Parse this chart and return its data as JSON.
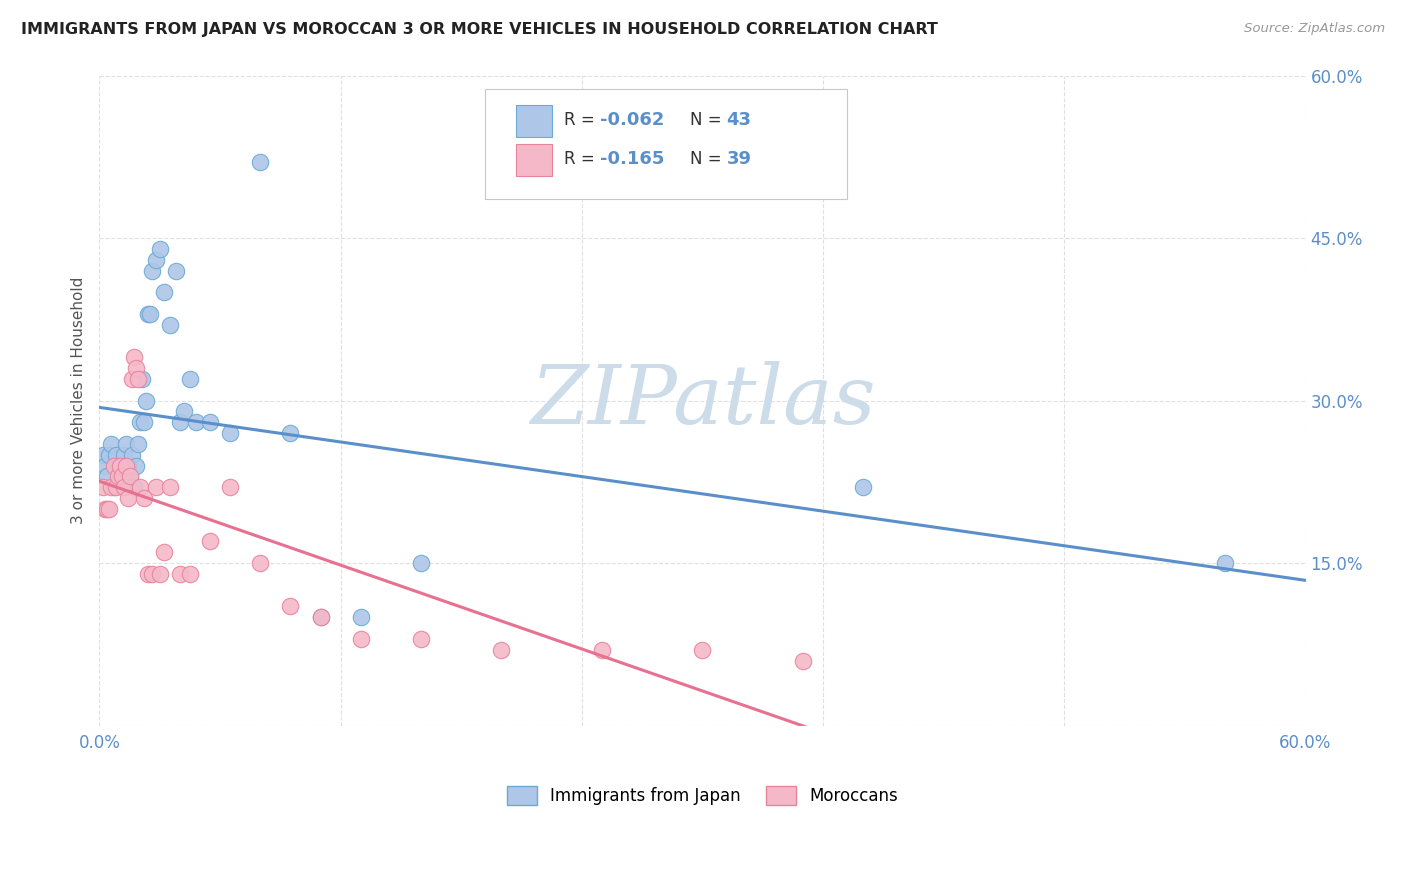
{
  "title": "IMMIGRANTS FROM JAPAN VS MOROCCAN 3 OR MORE VEHICLES IN HOUSEHOLD CORRELATION CHART",
  "source": "Source: ZipAtlas.com",
  "ylabel": "3 or more Vehicles in Household",
  "xlim": [
    0.0,
    0.6
  ],
  "ylim": [
    0.0,
    0.6
  ],
  "xticks": [
    0.0,
    0.12,
    0.24,
    0.36,
    0.48,
    0.6
  ],
  "yticks": [
    0.0,
    0.15,
    0.3,
    0.45,
    0.6
  ],
  "xticklabels": [
    "0.0%",
    "",
    "",
    "",
    "",
    "60.0%"
  ],
  "yticklabels_right": [
    "",
    "15.0%",
    "30.0%",
    "45.0%",
    "60.0%"
  ],
  "legend_label1": "Immigrants from Japan",
  "legend_label2": "Moroccans",
  "r1": -0.062,
  "n1": 43,
  "r2": -0.165,
  "n2": 39,
  "color_japan_fill": "#aec6e8",
  "color_morocco_fill": "#f5b8c8",
  "color_japan_edge": "#6aaad4",
  "color_morocco_edge": "#e8849a",
  "color_japan_line": "#5b8fc9",
  "color_morocco_line": "#e87090",
  "color_tick_blue": "#5b8fc9",
  "color_watermark": "#ccdce8",
  "color_grid": "#cccccc",
  "japan_x": [
    0.002,
    0.003,
    0.004,
    0.005,
    0.006,
    0.007,
    0.008,
    0.009,
    0.01,
    0.011,
    0.012,
    0.013,
    0.014,
    0.015,
    0.016,
    0.017,
    0.018,
    0.019,
    0.02,
    0.021,
    0.022,
    0.023,
    0.024,
    0.025,
    0.026,
    0.028,
    0.03,
    0.032,
    0.035,
    0.038,
    0.04,
    0.042,
    0.045,
    0.048,
    0.055,
    0.065,
    0.08,
    0.095,
    0.11,
    0.13,
    0.16,
    0.38,
    0.56
  ],
  "japan_y": [
    0.25,
    0.24,
    0.23,
    0.25,
    0.26,
    0.22,
    0.25,
    0.24,
    0.23,
    0.24,
    0.25,
    0.26,
    0.24,
    0.23,
    0.25,
    0.22,
    0.24,
    0.26,
    0.28,
    0.32,
    0.28,
    0.3,
    0.38,
    0.38,
    0.42,
    0.43,
    0.44,
    0.4,
    0.37,
    0.42,
    0.28,
    0.29,
    0.32,
    0.28,
    0.28,
    0.27,
    0.52,
    0.27,
    0.1,
    0.1,
    0.15,
    0.22,
    0.15
  ],
  "morocco_x": [
    0.002,
    0.003,
    0.004,
    0.005,
    0.006,
    0.007,
    0.008,
    0.009,
    0.01,
    0.011,
    0.012,
    0.013,
    0.014,
    0.015,
    0.016,
    0.017,
    0.018,
    0.019,
    0.02,
    0.022,
    0.024,
    0.026,
    0.028,
    0.03,
    0.032,
    0.035,
    0.04,
    0.045,
    0.055,
    0.065,
    0.08,
    0.095,
    0.11,
    0.13,
    0.16,
    0.2,
    0.25,
    0.3,
    0.35
  ],
  "morocco_y": [
    0.22,
    0.2,
    0.2,
    0.2,
    0.22,
    0.24,
    0.22,
    0.23,
    0.24,
    0.23,
    0.22,
    0.24,
    0.21,
    0.23,
    0.32,
    0.34,
    0.33,
    0.32,
    0.22,
    0.21,
    0.14,
    0.14,
    0.22,
    0.14,
    0.16,
    0.22,
    0.14,
    0.14,
    0.17,
    0.22,
    0.15,
    0.11,
    0.1,
    0.08,
    0.08,
    0.07,
    0.07,
    0.07,
    0.06
  ]
}
